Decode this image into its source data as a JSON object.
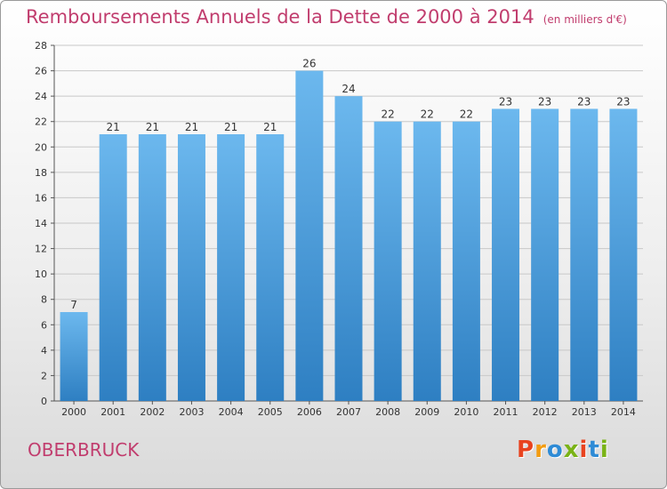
{
  "header": {
    "title": "Remboursements Annuels de la Dette de 2000 à 2014",
    "unit": "(en milliers d'€)"
  },
  "footer": {
    "city": "OBERBRUCK",
    "logo": {
      "text": "Proxiti",
      "colors": [
        "#e8431f",
        "#f39c12",
        "#2e8bd6",
        "#7ab317",
        "#e8431f",
        "#2e8bd6",
        "#7ab317"
      ]
    }
  },
  "colors": {
    "title": "#c13d6e",
    "bar_light": "#6cb8ee",
    "bar_dark": "#2e7fc2",
    "grid": "#c8c8c8"
  },
  "chart_data": {
    "type": "bar",
    "categories": [
      "2000",
      "2001",
      "2002",
      "2003",
      "2004",
      "2005",
      "2006",
      "2007",
      "2008",
      "2009",
      "2010",
      "2011",
      "2012",
      "2013",
      "2014"
    ],
    "values": [
      7,
      21,
      21,
      21,
      21,
      21,
      26,
      24,
      22,
      22,
      22,
      23,
      23,
      23,
      23
    ],
    "data_labels": [
      "7",
      "21",
      "21",
      "21",
      "21",
      "21",
      "26",
      "24",
      "22",
      "22",
      "22",
      "23",
      "23",
      "23",
      "23"
    ],
    "y_ticks": [
      "0",
      "2",
      "4",
      "6",
      "8",
      "10",
      "12",
      "14",
      "16",
      "18",
      "20",
      "22",
      "24",
      "26",
      "28"
    ],
    "ylim": [
      0,
      28
    ],
    "grid": true,
    "legend": "none"
  }
}
